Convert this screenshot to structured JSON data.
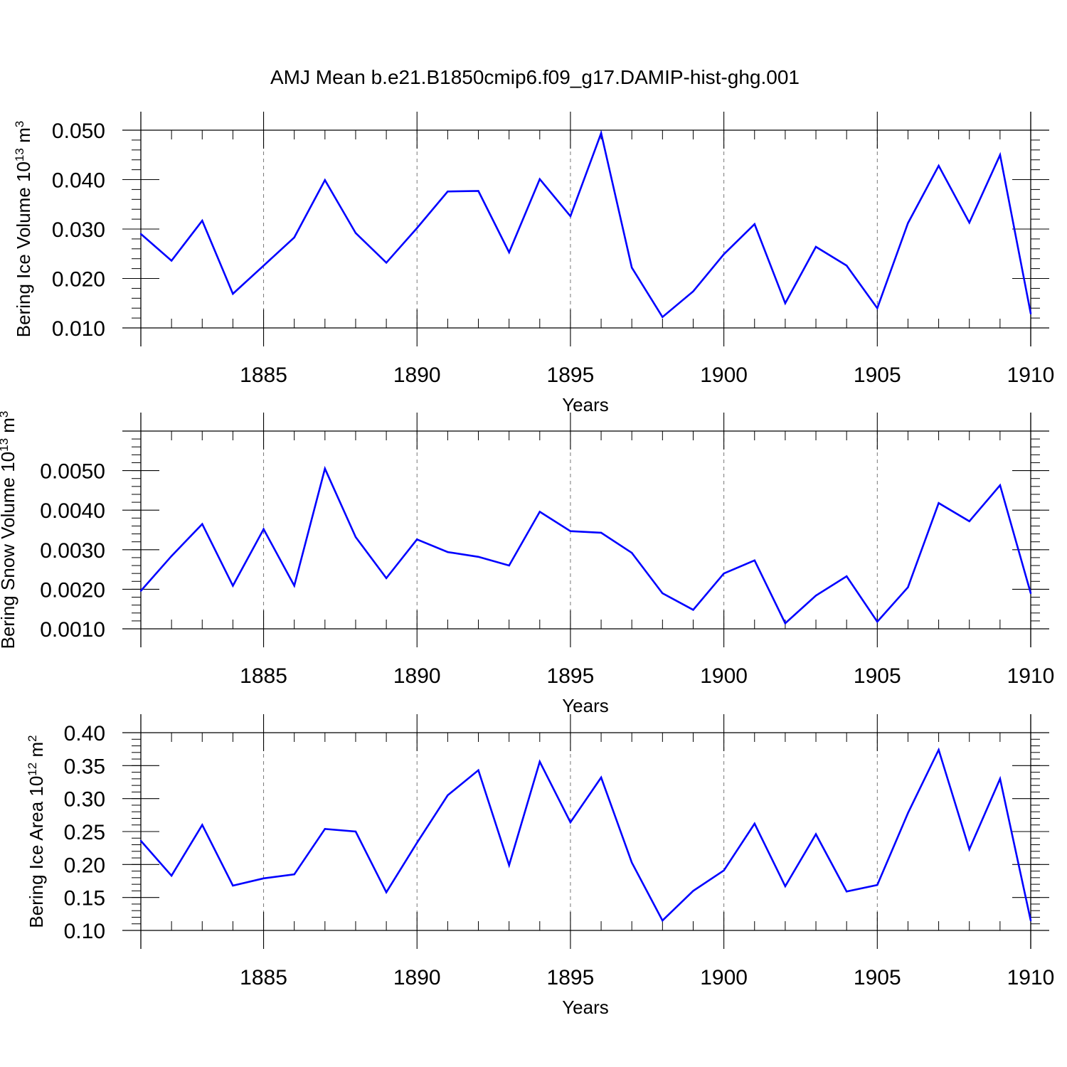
{
  "title": "AMJ Mean b.e21.B1850cmip6.f09_g17.DAMIP-hist-ghg.001",
  "series_color": "#0000ff",
  "chart_data": [
    {
      "type": "line",
      "xlabel": "Years",
      "ylabel": {
        "prefix": "Bering Ice Volume 10",
        "exp": "13",
        "unit": " m",
        "unit_exp": "3"
      },
      "xlim": [
        1881,
        1910
      ],
      "ylim": [
        0.01,
        0.05
      ],
      "xticks": [
        1885,
        1890,
        1895,
        1900,
        1905,
        1910
      ],
      "xtick_labels": [
        "1885",
        "1890",
        "1895",
        "1900",
        "1905",
        "1910"
      ],
      "yticks": [
        0.01,
        0.02,
        0.03,
        0.04,
        0.05
      ],
      "ytick_labels": [
        "0.010",
        "0.020",
        "0.030",
        "0.040",
        "0.050"
      ],
      "ymajor_step": 0.01,
      "yminor_step": 0.002,
      "x": [
        1881,
        1882,
        1883,
        1884,
        1885,
        1886,
        1887,
        1888,
        1889,
        1890,
        1891,
        1892,
        1893,
        1894,
        1895,
        1896,
        1897,
        1898,
        1899,
        1900,
        1901,
        1902,
        1903,
        1904,
        1905,
        1906,
        1907,
        1908,
        1909,
        1910
      ],
      "values": [
        0.029,
        0.0236,
        0.0317,
        0.0169,
        0.0226,
        0.0283,
        0.0399,
        0.0292,
        0.0232,
        0.0302,
        0.0376,
        0.0377,
        0.0253,
        0.0401,
        0.0326,
        0.0494,
        0.0222,
        0.0122,
        0.0174,
        0.0249,
        0.031,
        0.015,
        0.0264,
        0.0226,
        0.014,
        0.0312,
        0.0428,
        0.0313,
        0.045,
        0.0129
      ]
    },
    {
      "type": "line",
      "xlabel": "Years",
      "ylabel": {
        "prefix": "Bering Snow Volume 10",
        "exp": "13",
        "unit": " m",
        "unit_exp": "3"
      },
      "xlim": [
        1881,
        1910
      ],
      "ylim": [
        0.001,
        0.006
      ],
      "xticks": [
        1885,
        1890,
        1895,
        1900,
        1905,
        1910
      ],
      "xtick_labels": [
        "1885",
        "1890",
        "1895",
        "1900",
        "1905",
        "1910"
      ],
      "yticks": [
        0.001,
        0.002,
        0.003,
        0.004,
        0.005
      ],
      "ytick_labels": [
        "0.0010",
        "0.0020",
        "0.0030",
        "0.0040",
        "0.0050"
      ],
      "ymajor_step": 0.001,
      "yminor_step": 0.0002,
      "x": [
        1881,
        1882,
        1883,
        1884,
        1885,
        1886,
        1887,
        1888,
        1889,
        1890,
        1891,
        1892,
        1893,
        1894,
        1895,
        1896,
        1897,
        1898,
        1899,
        1900,
        1901,
        1902,
        1903,
        1904,
        1905,
        1906,
        1907,
        1908,
        1909,
        1910
      ],
      "values": [
        0.00196,
        0.00284,
        0.00365,
        0.00209,
        0.00352,
        0.00209,
        0.00505,
        0.00332,
        0.00228,
        0.00326,
        0.00294,
        0.00282,
        0.0026,
        0.00396,
        0.00347,
        0.00343,
        0.00292,
        0.0019,
        0.00148,
        0.0024,
        0.00273,
        0.00114,
        0.00184,
        0.00233,
        0.00118,
        0.00205,
        0.00418,
        0.00372,
        0.00463,
        0.0019
      ]
    },
    {
      "type": "line",
      "xlabel": "Years",
      "ylabel": {
        "prefix": "Bering Ice Area 10",
        "exp": "12",
        "unit": " m",
        "unit_exp": "2"
      },
      "xlim": [
        1881,
        1910
      ],
      "ylim": [
        0.1,
        0.4
      ],
      "xticks": [
        1885,
        1890,
        1895,
        1900,
        1905,
        1910
      ],
      "xtick_labels": [
        "1885",
        "1890",
        "1895",
        "1900",
        "1905",
        "1910"
      ],
      "yticks": [
        0.1,
        0.15,
        0.2,
        0.25,
        0.3,
        0.35,
        0.4
      ],
      "ytick_labels": [
        "0.10",
        "0.15",
        "0.20",
        "0.25",
        "0.30",
        "0.35",
        "0.40"
      ],
      "ymajor_step": 0.05,
      "yminor_step": 0.01,
      "x": [
        1881,
        1882,
        1883,
        1884,
        1885,
        1886,
        1887,
        1888,
        1889,
        1890,
        1891,
        1892,
        1893,
        1894,
        1895,
        1896,
        1897,
        1898,
        1899,
        1900,
        1901,
        1902,
        1903,
        1904,
        1905,
        1906,
        1907,
        1908,
        1909,
        1910
      ],
      "values": [
        0.236,
        0.183,
        0.26,
        0.168,
        0.179,
        0.185,
        0.254,
        0.25,
        0.158,
        0.233,
        0.305,
        0.343,
        0.199,
        0.356,
        0.264,
        0.332,
        0.203,
        0.115,
        0.16,
        0.191,
        0.262,
        0.167,
        0.246,
        0.159,
        0.169,
        0.278,
        0.374,
        0.223,
        0.33,
        0.115
      ]
    }
  ]
}
